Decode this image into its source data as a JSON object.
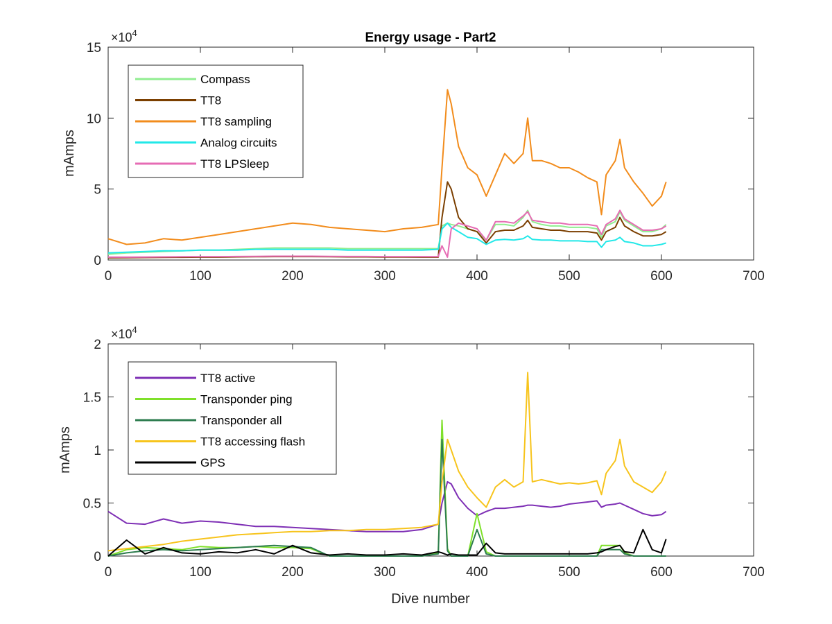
{
  "chart_data": [
    {
      "type": "line",
      "title": "Energy usage - Part2",
      "xlabel": "",
      "ylabel": "mAmps",
      "xlim": [
        0,
        700
      ],
      "ylim": [
        0,
        150000
      ],
      "x_ticks": [
        "0",
        "100",
        "200",
        "300",
        "400",
        "500",
        "600",
        "700"
      ],
      "y_ticks": [
        "0",
        "5",
        "10",
        "15"
      ],
      "y_exponent": "×10",
      "y_exponent_power": "4",
      "legend_position": "top-left",
      "grid": false,
      "x": [
        0,
        20,
        40,
        60,
        80,
        100,
        120,
        140,
        160,
        180,
        200,
        220,
        240,
        260,
        280,
        300,
        320,
        340,
        358,
        362,
        368,
        372,
        380,
        390,
        400,
        410,
        420,
        430,
        440,
        450,
        455,
        460,
        470,
        480,
        490,
        500,
        510,
        520,
        530,
        535,
        540,
        550,
        555,
        560,
        570,
        580,
        590,
        600,
        605
      ],
      "series": [
        {
          "name": "Compass",
          "color": "#90EE90",
          "values": [
            4000,
            5000,
            5500,
            6000,
            6500,
            7000,
            7000,
            7500,
            8000,
            8500,
            8500,
            8500,
            8500,
            8000,
            8000,
            8000,
            8000,
            8000,
            8000,
            24000,
            26000,
            25000,
            24000,
            22000,
            20000,
            14000,
            25000,
            25000,
            24000,
            30000,
            35000,
            27000,
            25000,
            24000,
            24000,
            23000,
            23000,
            23000,
            22000,
            16000,
            24000,
            27000,
            34000,
            28000,
            24000,
            20000,
            20000,
            22000,
            25000
          ]
        },
        {
          "name": "TT8",
          "color": "#7B3F00",
          "values": [
            1500,
            1600,
            1700,
            1800,
            1900,
            2000,
            2000,
            2200,
            2300,
            2400,
            2400,
            2400,
            2300,
            2200,
            2200,
            2100,
            2100,
            2000,
            2000,
            30000,
            55000,
            50000,
            30000,
            22000,
            20000,
            12000,
            20000,
            21000,
            21000,
            24000,
            28000,
            23000,
            22000,
            21000,
            21000,
            20000,
            20000,
            20000,
            19000,
            14000,
            20000,
            23000,
            30000,
            24000,
            20000,
            17000,
            17000,
            18000,
            20000
          ]
        },
        {
          "name": "TT8 sampling",
          "color": "#F28C1C",
          "values": [
            15000,
            11000,
            12000,
            15000,
            14000,
            16000,
            18000,
            20000,
            22000,
            24000,
            26000,
            25000,
            23000,
            22000,
            21000,
            20000,
            22000,
            23000,
            25000,
            65000,
            120000,
            110000,
            80000,
            65000,
            60000,
            45000,
            60000,
            75000,
            68000,
            75000,
            100000,
            70000,
            70000,
            68000,
            65000,
            65000,
            62000,
            58000,
            55000,
            32000,
            60000,
            70000,
            85000,
            65000,
            55000,
            47000,
            38000,
            45000,
            55000
          ]
        },
        {
          "name": "Analog circuits",
          "color": "#22E8E8",
          "values": [
            5000,
            5500,
            6000,
            6500,
            6500,
            7000,
            7000,
            7000,
            7500,
            7500,
            7500,
            7500,
            7500,
            7000,
            7000,
            7000,
            7000,
            7000,
            7500,
            22000,
            26000,
            23000,
            20000,
            16000,
            15000,
            11000,
            14000,
            14500,
            14000,
            15000,
            17000,
            14500,
            14000,
            14000,
            13500,
            13500,
            13500,
            13000,
            13000,
            9000,
            13000,
            14000,
            16000,
            13000,
            12000,
            10000,
            10000,
            11000,
            12000
          ]
        },
        {
          "name": "TT8 LPSleep",
          "color": "#E66CB4",
          "values": [
            2000,
            2000,
            2100,
            2200,
            2300,
            2400,
            2400,
            2500,
            2600,
            2700,
            2700,
            2700,
            2600,
            2500,
            2500,
            2400,
            2400,
            2400,
            2400,
            10000,
            2000,
            22000,
            26000,
            24000,
            22000,
            14000,
            27000,
            27000,
            26000,
            31000,
            34000,
            28000,
            27000,
            26000,
            26000,
            25000,
            25000,
            25000,
            24000,
            18000,
            25000,
            29000,
            35000,
            29000,
            25000,
            21000,
            21000,
            22000,
            24000
          ]
        }
      ]
    },
    {
      "type": "line",
      "title": "",
      "xlabel": "Dive number",
      "ylabel": "mAmps",
      "xlim": [
        0,
        700
      ],
      "ylim": [
        0,
        20000
      ],
      "x_ticks": [
        "0",
        "100",
        "200",
        "300",
        "400",
        "500",
        "600",
        "700"
      ],
      "y_ticks": [
        "0",
        "0.5",
        "1",
        "1.5",
        "2"
      ],
      "y_exponent": "×10",
      "y_exponent_power": "4",
      "legend_position": "top-left",
      "grid": false,
      "x": [
        0,
        20,
        40,
        60,
        80,
        100,
        120,
        140,
        160,
        180,
        200,
        220,
        240,
        260,
        280,
        300,
        320,
        340,
        358,
        362,
        368,
        372,
        380,
        390,
        400,
        410,
        420,
        430,
        440,
        450,
        455,
        460,
        470,
        480,
        490,
        500,
        510,
        520,
        530,
        535,
        540,
        550,
        555,
        560,
        570,
        580,
        590,
        600,
        605
      ],
      "series": [
        {
          "name": "TT8 active",
          "color": "#7E2FB5",
          "values": [
            4200,
            3100,
            3000,
            3500,
            3100,
            3300,
            3200,
            3000,
            2800,
            2800,
            2700,
            2600,
            2500,
            2400,
            2300,
            2300,
            2300,
            2500,
            3000,
            5000,
            7000,
            6800,
            5500,
            4500,
            3800,
            4200,
            4500,
            4500,
            4600,
            4700,
            4800,
            4800,
            4700,
            4600,
            4700,
            4900,
            5000,
            5100,
            5200,
            4600,
            4800,
            4900,
            5000,
            4800,
            4400,
            4000,
            3800,
            3900,
            4200
          ]
        },
        {
          "name": "Transponder ping",
          "color": "#7FE02A",
          "values": [
            0,
            600,
            800,
            700,
            600,
            900,
            800,
            800,
            900,
            800,
            800,
            700,
            0,
            0,
            0,
            0,
            0,
            0,
            300,
            12800,
            700,
            0,
            0,
            0,
            4000,
            400,
            0,
            0,
            0,
            0,
            0,
            0,
            0,
            0,
            0,
            0,
            0,
            0,
            0,
            1000,
            1000,
            1000,
            1000,
            300,
            0,
            0,
            0,
            0,
            0
          ]
        },
        {
          "name": "Transponder all",
          "color": "#2E7D4F",
          "values": [
            0,
            300,
            500,
            600,
            500,
            600,
            700,
            800,
            900,
            1000,
            900,
            800,
            0,
            0,
            0,
            0,
            0,
            0,
            200,
            11000,
            500,
            0,
            0,
            0,
            2500,
            200,
            0,
            0,
            0,
            0,
            0,
            0,
            0,
            0,
            0,
            0,
            0,
            0,
            0,
            600,
            600,
            600,
            600,
            200,
            0,
            0,
            0,
            0,
            0
          ]
        },
        {
          "name": "TT8 accessing flash",
          "color": "#F7C41C",
          "values": [
            500,
            700,
            900,
            1100,
            1400,
            1600,
            1800,
            2000,
            2100,
            2200,
            2300,
            2300,
            2400,
            2400,
            2500,
            2500,
            2600,
            2700,
            3000,
            7000,
            11000,
            10000,
            8000,
            6500,
            5500,
            4600,
            6500,
            7200,
            6500,
            7000,
            17300,
            7000,
            7200,
            7000,
            6800,
            6900,
            6800,
            6900,
            7100,
            5800,
            7800,
            9000,
            11000,
            8500,
            7000,
            6500,
            6000,
            7000,
            8000
          ]
        },
        {
          "name": "GPS",
          "color": "#000000",
          "values": [
            0,
            1500,
            200,
            800,
            300,
            200,
            400,
            300,
            600,
            200,
            1000,
            300,
            100,
            200,
            100,
            100,
            200,
            100,
            400,
            300,
            100,
            200,
            100,
            100,
            100,
            1200,
            300,
            200,
            200,
            200,
            200,
            200,
            200,
            200,
            200,
            200,
            200,
            200,
            300,
            400,
            600,
            900,
            1000,
            400,
            300,
            2500,
            600,
            300,
            1600
          ]
        }
      ]
    }
  ]
}
